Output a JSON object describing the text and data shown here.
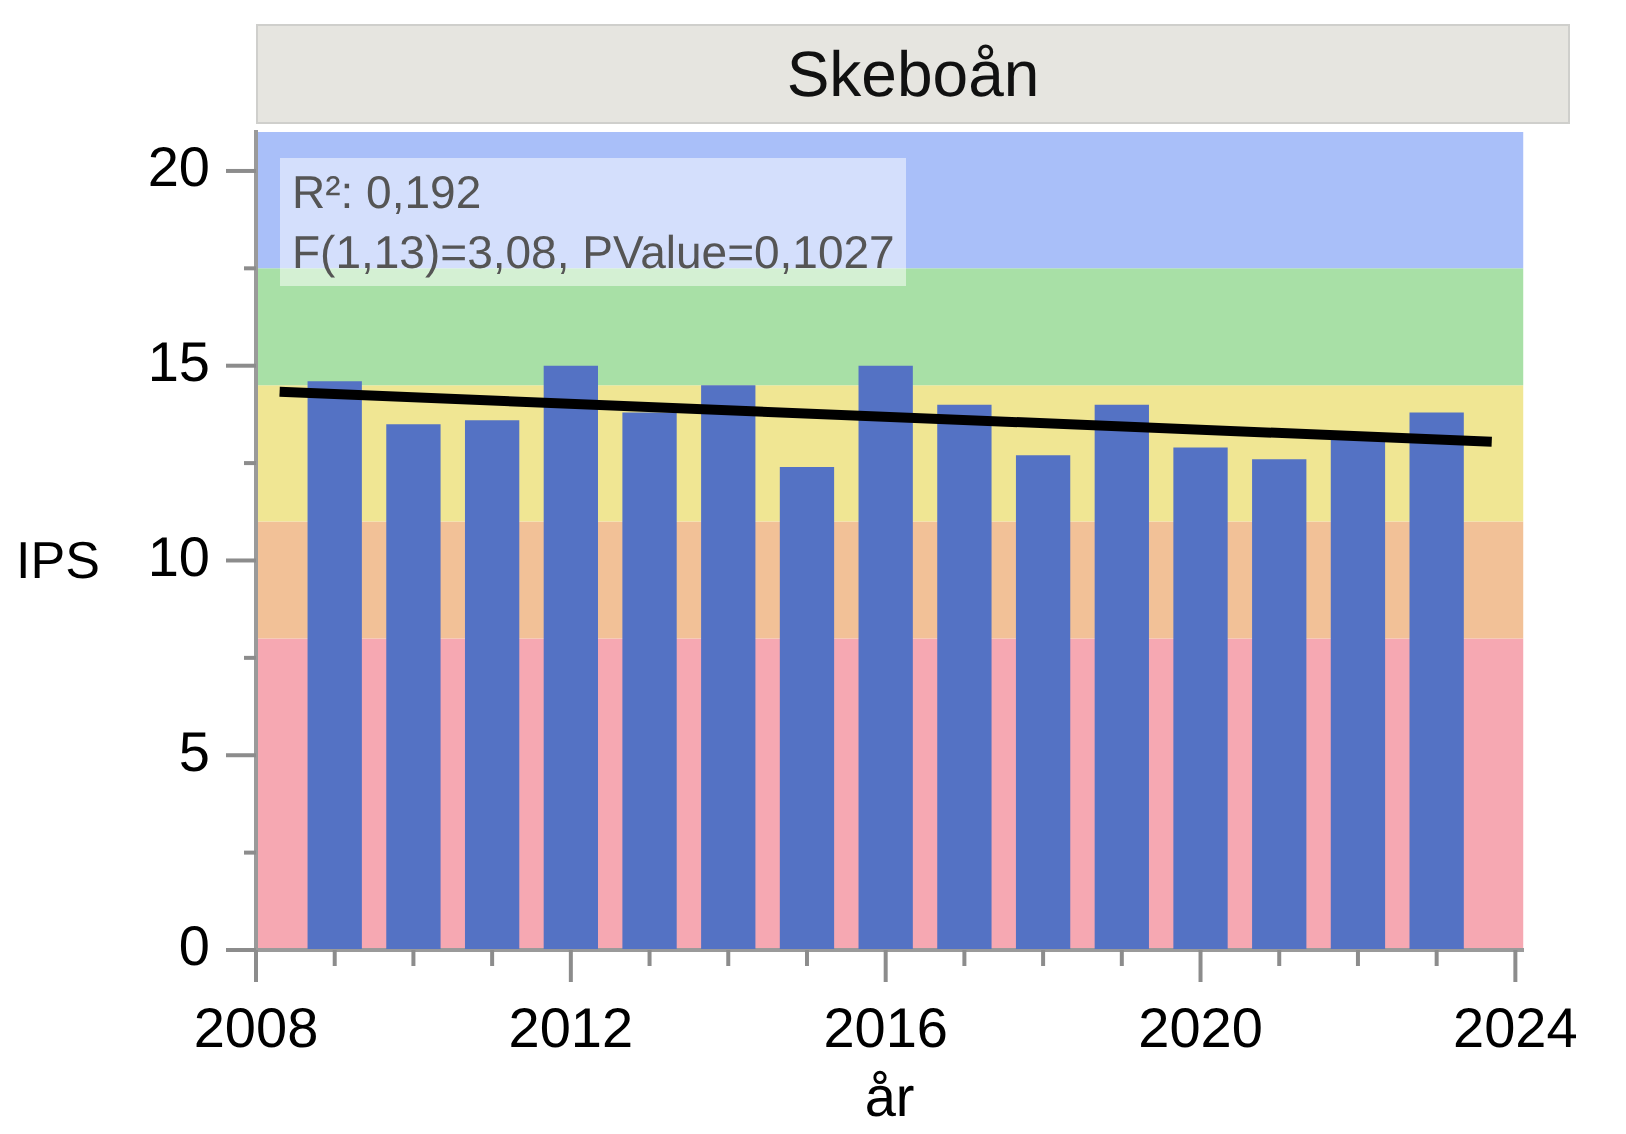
{
  "chart_data": {
    "type": "bar",
    "title": "Skeboån",
    "xlabel": "år",
    "ylabel": "IPS",
    "annotations": [
      "R²: 0,192",
      "F(1,13)=3,08, PValue=0,1027"
    ],
    "x": [
      2009,
      2010,
      2011,
      2012,
      2013,
      2014,
      2015,
      2016,
      2017,
      2018,
      2019,
      2020,
      2021,
      2022,
      2023
    ],
    "series": [
      {
        "color": "#5472c4",
        "values": [
          14.6,
          13.5,
          13.6,
          15.0,
          13.8,
          14.5,
          12.4,
          15.0,
          14.0,
          12.7,
          14.0,
          12.9,
          12.6,
          13.2,
          13.8
        ]
      },
      {
        "type": "line",
        "color": "#000000",
        "x": [
          2008.3,
          2023.7
        ],
        "values": [
          14.33,
          13.05
        ],
        "marker": "none"
      }
    ],
    "xlim": [
      2008,
      2024.1
    ],
    "xticks": [
      2008,
      {
        "value": 2009,
        "label": null
      },
      {
        "value": 2010,
        "label": null
      },
      {
        "value": 2011,
        "label": null
      },
      2012,
      {
        "value": 2013,
        "label": null
      },
      {
        "value": 2014,
        "label": null
      },
      {
        "value": 2015,
        "label": null
      },
      2016,
      {
        "value": 2017,
        "label": null
      },
      {
        "value": 2018,
        "label": null
      },
      {
        "value": 2019,
        "label": null
      },
      2020,
      {
        "value": 2021,
        "label": null
      },
      {
        "value": 2022,
        "label": null
      },
      {
        "value": 2023,
        "label": null
      },
      2024
    ],
    "ylim": [
      0,
      21
    ],
    "yticks": [
      0,
      {
        "value": 2.5,
        "label": null
      },
      5,
      {
        "value": 7.5,
        "label": null
      },
      10,
      {
        "value": 12.5,
        "label": null
      },
      15,
      {
        "value": 17.5,
        "label": null
      },
      20
    ],
    "bands": [
      {
        "axis": "y",
        "from": 0,
        "to": 8,
        "color": "#f6a8b2"
      },
      {
        "axis": "y",
        "from": 8,
        "to": 11,
        "color": "#f2c197"
      },
      {
        "axis": "y",
        "from": 11,
        "to": 14.5,
        "color": "#f0e693"
      },
      {
        "axis": "y",
        "from": 14.5,
        "to": 17.5,
        "color": "#a8e0a6"
      },
      {
        "axis": "y",
        "from": 17.5,
        "to": 21,
        "color": "#a9bff9"
      }
    ]
  }
}
